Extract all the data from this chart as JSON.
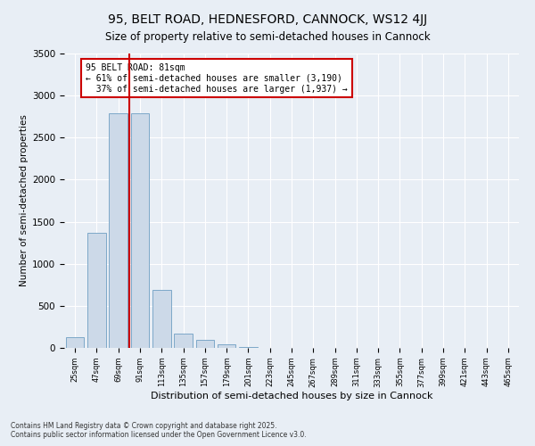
{
  "title1": "95, BELT ROAD, HEDNESFORD, CANNOCK, WS12 4JJ",
  "title2": "Size of property relative to semi-detached houses in Cannock",
  "xlabel": "Distribution of semi-detached houses by size in Cannock",
  "ylabel": "Number of semi-detached properties",
  "categories": [
    "25sqm",
    "47sqm",
    "69sqm",
    "91sqm",
    "113sqm",
    "135sqm",
    "157sqm",
    "179sqm",
    "201sqm",
    "223sqm",
    "245sqm",
    "267sqm",
    "289sqm",
    "311sqm",
    "333sqm",
    "355sqm",
    "377sqm",
    "399sqm",
    "421sqm",
    "443sqm",
    "465sqm"
  ],
  "values": [
    130,
    1370,
    2790,
    2790,
    690,
    165,
    100,
    45,
    10,
    0,
    0,
    0,
    0,
    0,
    0,
    0,
    0,
    0,
    0,
    0,
    0
  ],
  "bar_color": "#ccd9e8",
  "bar_edge_color": "#7da8c8",
  "vline_color": "#cc0000",
  "annotation_text": "95 BELT ROAD: 81sqm\n← 61% of semi-detached houses are smaller (3,190)\n  37% of semi-detached houses are larger (1,937) →",
  "annotation_box_color": "#ffffff",
  "annotation_box_edge": "#cc0000",
  "ylim": [
    0,
    3500
  ],
  "yticks": [
    0,
    500,
    1000,
    1500,
    2000,
    2500,
    3000,
    3500
  ],
  "footer1": "Contains HM Land Registry data © Crown copyright and database right 2025.",
  "footer2": "Contains public sector information licensed under the Open Government Licence v3.0.",
  "bg_color": "#e8eef5",
  "plot_bg_color": "#e8eef5",
  "title1_fontsize": 10,
  "title2_fontsize": 8.5,
  "vline_bar_index": 2.5
}
